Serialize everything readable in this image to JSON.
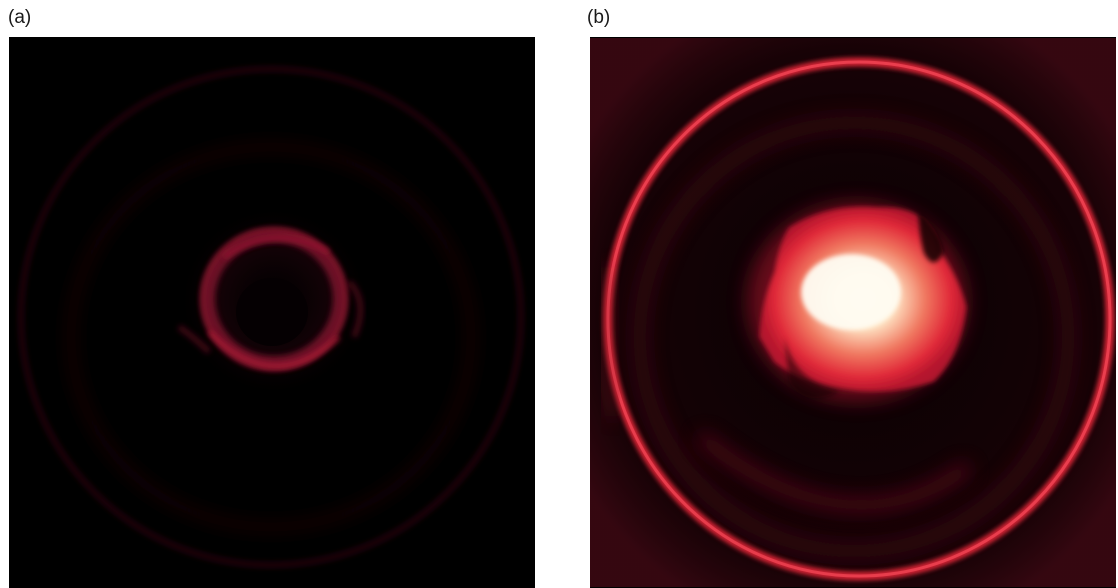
{
  "panels": [
    {
      "id": "a",
      "label": "(a)"
    },
    {
      "id": "b",
      "label": "(b)"
    }
  ],
  "colors": {
    "background": "#ffffff",
    "image_background": "#000000",
    "glow_dim": "#4a0a1a",
    "glow_red": "#e02838",
    "glow_core": "#fff4e0"
  }
}
